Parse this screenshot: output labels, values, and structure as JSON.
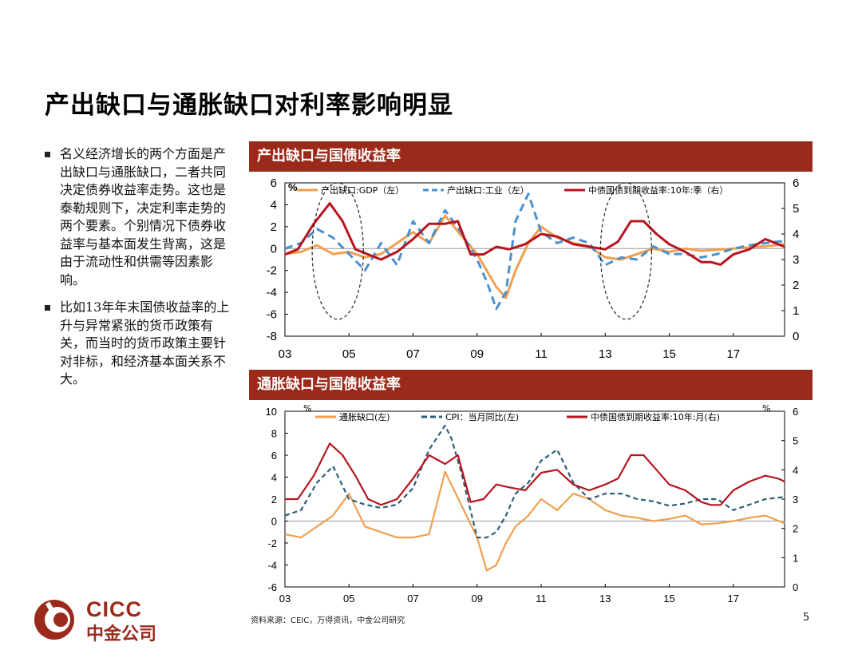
{
  "title": "产出缺口与通胀缺口对利率影响明显",
  "bullets": [
    "名义经济增长的两个方面是产出缺口与通胀缺口，二者共同决定债券收益率走势。这也是泰勒规则下，决定利率走势的两个要素。个别情况下债券收益率与基本面发生背离，这是由于流动性和供需等因素影响。",
    "比如13年年末国债收益率的上升与异常紧张的货币政策有关，而当时的货币政策主要针对非标，和经济基本面关系不大。"
  ],
  "colors": {
    "brand": "#9b2a1b",
    "orange": "#f0a050",
    "blue": "#4a90d0",
    "darkblue": "#2c5f7c",
    "red": "#b8141e"
  },
  "chart_data": [
    {
      "type": "line",
      "title": "产出缺口与国债收益率",
      "unit_label": "%",
      "x_ticks": [
        "03",
        "05",
        "07",
        "09",
        "11",
        "13",
        "15",
        "17"
      ],
      "left_ticks": [
        "6",
        "4",
        "2",
        "0",
        "-2",
        "-4",
        "-6",
        "-8"
      ],
      "right_ticks": [
        "6",
        "5",
        "4",
        "3",
        "2",
        "1",
        "0"
      ],
      "ylim_left": [
        -8,
        6
      ],
      "ylim_right": [
        0,
        6
      ],
      "x_range": [
        2003,
        2018.6
      ],
      "series": [
        {
          "name": "产出缺口:GDP（左）",
          "axis": "left",
          "style": "solid",
          "color": "#f0a050",
          "x": [
            2003,
            2003.5,
            2004,
            2004.5,
            2005,
            2005.5,
            2006,
            2006.5,
            2007,
            2007.5,
            2008,
            2008.5,
            2009,
            2009.3,
            2009.6,
            2009.9,
            2010.2,
            2010.6,
            2011,
            2011.5,
            2012,
            2012.5,
            2013,
            2013.5,
            2014,
            2014.5,
            2015,
            2015.5,
            2016,
            2016.5,
            2017,
            2017.5,
            2018,
            2018.6
          ],
          "y": [
            -0.5,
            -0.3,
            0.3,
            -0.5,
            -0.3,
            -0.8,
            -0.5,
            0.5,
            1.5,
            0.5,
            3.0,
            1.2,
            -0.5,
            -2.0,
            -3.5,
            -4.5,
            -2.0,
            0.5,
            2.0,
            1.0,
            0.5,
            0.2,
            -0.8,
            -1.0,
            -0.5,
            0,
            -0.3,
            0,
            -0.2,
            -0.1,
            0,
            0.1,
            0.2,
            0.4
          ]
        },
        {
          "name": "产出缺口:工业（左）",
          "axis": "left",
          "style": "dashed",
          "color": "#4a90d0",
          "x": [
            2003,
            2003.5,
            2004,
            2004.5,
            2005,
            2005.5,
            2006,
            2006.5,
            2007,
            2007.5,
            2008,
            2008.5,
            2009,
            2009.3,
            2009.6,
            2009.9,
            2010.2,
            2010.6,
            2011,
            2011.5,
            2012,
            2012.5,
            2013,
            2013.5,
            2014,
            2014.5,
            2015,
            2015.5,
            2016,
            2016.5,
            2017,
            2017.5,
            2018,
            2018.6
          ],
          "y": [
            0,
            0.5,
            1.8,
            1.0,
            -0.5,
            -2.0,
            0.5,
            -1.5,
            2.5,
            0.5,
            3.5,
            1.5,
            -1.0,
            -3.0,
            -5.5,
            -4.0,
            2.5,
            5.0,
            1.5,
            0.5,
            1.0,
            0.5,
            -1.5,
            -0.8,
            -1.0,
            0.2,
            -0.5,
            -0.5,
            -0.8,
            -0.5,
            0,
            0.3,
            0.5,
            0.7
          ]
        },
        {
          "name": "中债国债到期收益率:10年:季（右）",
          "axis": "right",
          "style": "solid",
          "color": "#b8141e",
          "x": [
            2003,
            2003.4,
            2003.9,
            2004.4,
            2004.8,
            2005.2,
            2005.6,
            2006,
            2006.5,
            2007,
            2007.5,
            2008,
            2008.4,
            2008.8,
            2009.2,
            2009.6,
            2010,
            2010.5,
            2011,
            2011.5,
            2012,
            2012.5,
            2013,
            2013.4,
            2013.8,
            2014.2,
            2014.6,
            2015,
            2015.5,
            2016,
            2016.3,
            2016.6,
            2017,
            2017.5,
            2018,
            2018.4,
            2018.6
          ],
          "y": [
            3.2,
            3.4,
            4.4,
            5.2,
            4.5,
            3.4,
            3.2,
            3.0,
            3.3,
            3.8,
            4.4,
            4.4,
            4.5,
            3.2,
            3.2,
            3.5,
            3.4,
            3.6,
            4.0,
            3.9,
            3.6,
            3.5,
            3.4,
            3.7,
            4.5,
            4.5,
            4.0,
            3.6,
            3.3,
            2.9,
            2.9,
            2.8,
            3.2,
            3.4,
            3.8,
            3.6,
            3.5
          ]
        }
      ],
      "annotations": [
        "ellipse around 2004-2005",
        "ellipse around 2013-2014"
      ]
    },
    {
      "type": "line",
      "title": "通胀缺口与国债收益率",
      "unit_label_left": "%",
      "unit_label_right": "%",
      "x_ticks": [
        "03",
        "05",
        "07",
        "09",
        "11",
        "13",
        "15",
        "17"
      ],
      "left_ticks": [
        "10",
        "8",
        "6",
        "4",
        "2",
        "0",
        "-2",
        "-4",
        "-6"
      ],
      "right_ticks": [
        "6",
        "5",
        "4",
        "3",
        "2",
        "1",
        "0"
      ],
      "ylim_left": [
        -6,
        10
      ],
      "ylim_right": [
        0,
        6
      ],
      "x_range": [
        2003,
        2018.6
      ],
      "series": [
        {
          "name": "通胀缺口(左)",
          "axis": "left",
          "style": "solid",
          "color": "#f0a050",
          "x": [
            2003,
            2003.5,
            2004,
            2004.5,
            2005,
            2005.5,
            2006,
            2006.5,
            2007,
            2007.5,
            2008,
            2008.5,
            2009,
            2009.3,
            2009.6,
            2009.9,
            2010.2,
            2010.6,
            2011,
            2011.5,
            2012,
            2012.5,
            2013,
            2013.5,
            2014,
            2014.5,
            2015,
            2015.5,
            2016,
            2016.5,
            2017,
            2017.5,
            2018,
            2018.6
          ],
          "y": [
            -1.2,
            -1.5,
            -0.5,
            0.5,
            2.5,
            -0.5,
            -1.0,
            -1.5,
            -1.5,
            -1.2,
            4.5,
            1.5,
            -1.5,
            -4.5,
            -4.0,
            -2.0,
            -0.5,
            0.5,
            2.0,
            1.0,
            2.5,
            2.0,
            1.0,
            0.5,
            0.3,
            0,
            0.2,
            0.5,
            -0.3,
            -0.2,
            0,
            0.3,
            0.5,
            -0.2
          ]
        },
        {
          "name": "CPI：当月同比(左)",
          "axis": "left",
          "style": "dashed",
          "color": "#2c5f7c",
          "x": [
            2003,
            2003.5,
            2004,
            2004.5,
            2005,
            2005.5,
            2006,
            2006.5,
            2007,
            2007.5,
            2008,
            2008.2,
            2008.5,
            2009,
            2009.3,
            2009.6,
            2009.9,
            2010.2,
            2010.6,
            2011,
            2011.5,
            2012,
            2012.5,
            2013,
            2013.5,
            2014,
            2014.5,
            2015,
            2015.5,
            2016,
            2016.5,
            2017,
            2017.5,
            2018,
            2018.6
          ],
          "y": [
            0.5,
            1.0,
            3.5,
            5.0,
            2.0,
            1.5,
            1.2,
            1.5,
            3.0,
            6.5,
            8.7,
            7.5,
            4.5,
            -1.5,
            -1.5,
            -1.0,
            0.5,
            2.5,
            3.5,
            5.5,
            6.5,
            3.5,
            2.0,
            2.5,
            2.5,
            2.0,
            1.8,
            1.4,
            1.6,
            2.0,
            2.0,
            1.0,
            1.5,
            2.0,
            2.2
          ]
        },
        {
          "name": "中债国债到期收益率:10年:月(右)",
          "axis": "right",
          "style": "solid",
          "color": "#b8141e",
          "x": [
            2003,
            2003.4,
            2003.9,
            2004.4,
            2004.8,
            2005.2,
            2005.6,
            2006,
            2006.5,
            2007,
            2007.5,
            2008,
            2008.4,
            2008.8,
            2009.2,
            2009.6,
            2010,
            2010.5,
            2011,
            2011.5,
            2012,
            2012.5,
            2013,
            2013.4,
            2013.8,
            2014.2,
            2014.6,
            2015,
            2015.5,
            2016,
            2016.3,
            2016.6,
            2017,
            2017.5,
            2018,
            2018.4,
            2018.6
          ],
          "y": [
            3.0,
            3.0,
            3.8,
            4.9,
            4.5,
            3.8,
            3.0,
            2.8,
            3.0,
            3.7,
            4.5,
            4.2,
            4.5,
            2.9,
            3.0,
            3.5,
            3.4,
            3.3,
            3.9,
            4.0,
            3.5,
            3.3,
            3.5,
            3.7,
            4.5,
            4.5,
            4.0,
            3.5,
            3.3,
            2.9,
            2.8,
            2.8,
            3.3,
            3.6,
            3.8,
            3.7,
            3.6
          ]
        }
      ]
    }
  ],
  "source": "资料来源：CEIC，万得资讯，中金公司研究",
  "page_number": "5",
  "logo": {
    "name_en": "CICC",
    "name_cn": "中金公司"
  }
}
